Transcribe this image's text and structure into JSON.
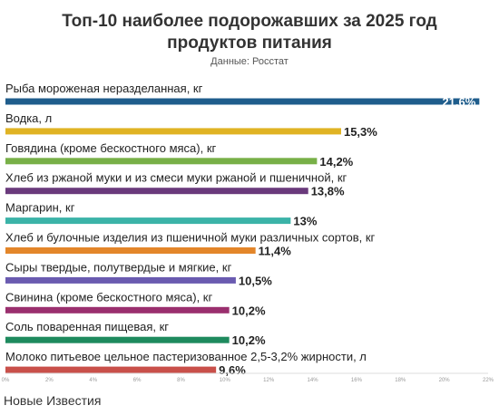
{
  "title_line1": "Топ-10 наиболее подорожавших за 2025 год",
  "title_line2": "продуктов питания",
  "subtitle": "Данные: Росстат",
  "footer": "Новые Известия",
  "chart_data": {
    "type": "bar",
    "orientation": "horizontal",
    "categories": [
      "Рыба мороженая неразделанная, кг",
      "Водка, л",
      "Говядина (кроме бескостного мяса), кг",
      "Хлеб из ржаной муки и из смеси муки ржаной и пшеничной, кг",
      "Маргарин, кг",
      "Хлеб и булочные изделия из пшеничной муки различных сортов, кг",
      "Сыры твердые, полутвердые и мягкие, кг",
      "Свинина (кроме бескостного мяса), кг",
      "Соль поваренная пищевая, кг",
      "Молоко питьевое цельное пастеризованное 2,5-3,2% жирности, л"
    ],
    "values": [
      21.6,
      15.3,
      14.2,
      13.8,
      13,
      11.4,
      10.5,
      10.2,
      10.2,
      9.6
    ],
    "value_labels": [
      "21,6%",
      "15,3%",
      "14,2%",
      "13,8%",
      "13%",
      "11,4%",
      "10,5%",
      "10,2%",
      "10,2%",
      "9,6%"
    ],
    "colors": [
      "#1f5d8c",
      "#e0b324",
      "#78b048",
      "#6a3a7c",
      "#3bb3a8",
      "#e3862a",
      "#6a5bb0",
      "#9a2f6e",
      "#1e8a5e",
      "#c9504a"
    ],
    "x_ticks": [
      0,
      2,
      4,
      6,
      8,
      10,
      12,
      14,
      16,
      18,
      20,
      22
    ],
    "x_tick_labels": [
      "0%",
      "2%",
      "4%",
      "6%",
      "8%",
      "10%",
      "12%",
      "14%",
      "16%",
      "18%",
      "20%",
      "22%"
    ],
    "xlim": [
      0,
      22
    ],
    "grid": false,
    "legend": "none"
  }
}
